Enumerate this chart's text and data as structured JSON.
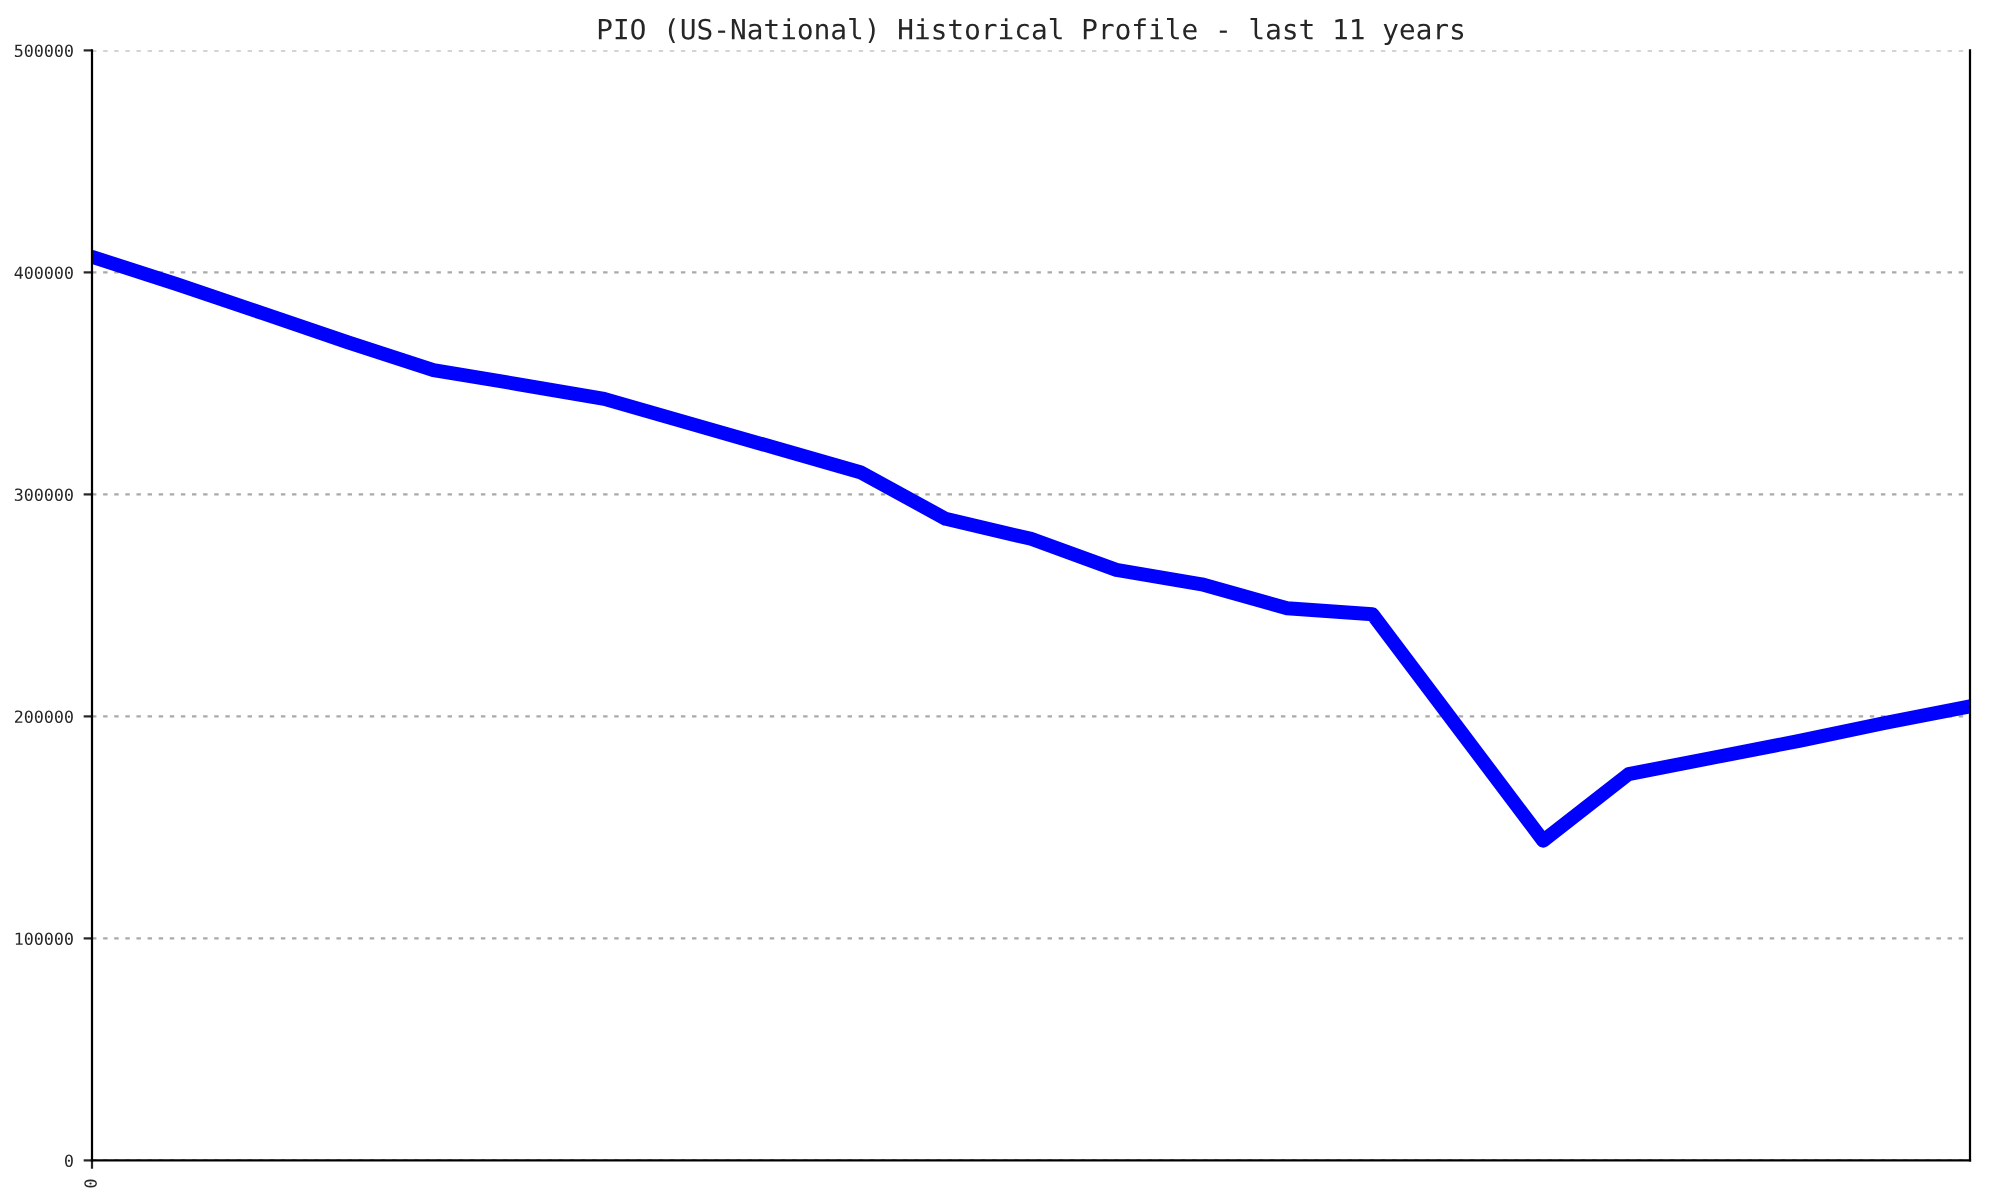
{
  "chart_data": {
    "type": "line",
    "title": "PIO (US-National) Historical Profile - last 11 years",
    "categories": [
      "0",
      null,
      null,
      null,
      null,
      null,
      null,
      null,
      null,
      null,
      null,
      null,
      null,
      null,
      null,
      null,
      null,
      null,
      null,
      null,
      null,
      null,
      null
    ],
    "series": [
      {
        "color": "#0000ff",
        "values": [
          407000,
          394600,
          381600,
          368500,
          356000,
          349600,
          343000,
          332000,
          321000,
          310000,
          289000,
          280000,
          266000,
          259500,
          248700,
          246000,
          195000,
          144000,
          174000,
          181500,
          189000,
          197000,
          204500
        ]
      }
    ],
    "ylim": [
      0,
      500000
    ],
    "yticks": [
      0,
      100000,
      200000,
      300000,
      400000,
      500000
    ],
    "grid": "y",
    "marker": "none",
    "line_style": "solid"
  }
}
